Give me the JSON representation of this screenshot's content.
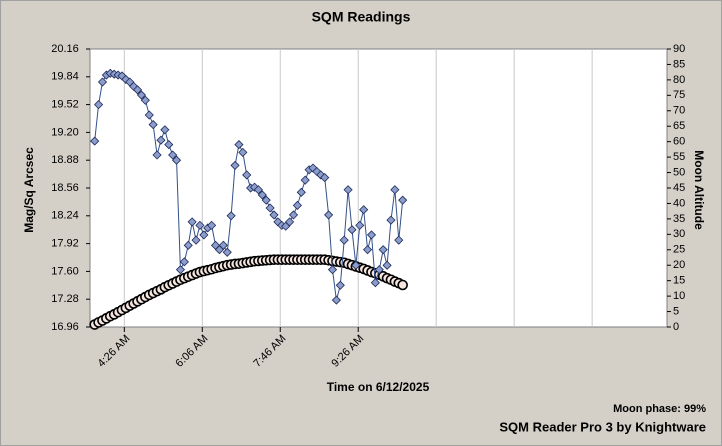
{
  "chart_data": {
    "type": "line",
    "title": "SQM Readings",
    "x_label": "Time on 6/12/2025",
    "y_label": "Mag/Sq Arcsec",
    "y2_label": "Moon Altitude",
    "annotations": [
      "Moon phase: 99%",
      "SQM Reader Pro 3 by Knightware"
    ],
    "x": [
      "3:48 AM",
      "3:53 AM",
      "3:58 AM",
      "4:03 AM",
      "4:08 AM",
      "4:13 AM",
      "4:18 AM",
      "4:23 AM",
      "4:28 AM",
      "4:33 AM",
      "4:38 AM",
      "4:43 AM",
      "4:48 AM",
      "4:53 AM",
      "4:58 AM",
      "5:03 AM",
      "5:08 AM",
      "5:13 AM",
      "5:18 AM",
      "5:23 AM",
      "5:28 AM",
      "5:33 AM",
      "5:38 AM",
      "5:43 AM",
      "5:48 AM",
      "5:53 AM",
      "5:58 AM",
      "6:03 AM",
      "6:08 AM",
      "6:13 AM",
      "6:18 AM",
      "6:23 AM",
      "6:28 AM",
      "6:33 AM",
      "6:38 AM",
      "6:43 AM",
      "6:48 AM",
      "6:53 AM",
      "6:58 AM",
      "7:03 AM",
      "7:08 AM",
      "7:13 AM",
      "7:18 AM",
      "7:23 AM",
      "7:28 AM",
      "7:33 AM",
      "7:38 AM",
      "7:43 AM",
      "7:48 AM",
      "7:53 AM",
      "7:58 AM",
      "8:03 AM",
      "8:08 AM",
      "8:13 AM",
      "8:18 AM",
      "8:23 AM",
      "8:28 AM",
      "8:33 AM",
      "8:38 AM",
      "8:43 AM",
      "8:48 AM",
      "8:53 AM",
      "8:58 AM",
      "9:03 AM",
      "9:08 AM",
      "9:13 AM",
      "9:18 AM",
      "9:23 AM",
      "9:28 AM",
      "9:33 AM",
      "9:38 AM",
      "9:43 AM",
      "9:48 AM",
      "9:53 AM",
      "9:58 AM",
      "10:03 AM",
      "10:08 AM",
      "10:13 AM",
      "10:18 AM",
      "10:23 AM"
    ],
    "series": [
      {
        "name": "SQM",
        "color": "#34508a",
        "marker_fill": "#8d9dcb",
        "values": [
          19.1,
          19.52,
          19.78,
          19.86,
          19.88,
          19.87,
          19.86,
          19.85,
          19.81,
          19.78,
          19.73,
          19.69,
          19.63,
          19.57,
          19.4,
          19.29,
          18.94,
          19.11,
          19.23,
          19.06,
          18.94,
          18.88,
          17.62,
          17.71,
          17.9,
          18.17,
          17.96,
          18.13,
          18.02,
          18.1,
          18.13,
          17.9,
          17.85,
          17.9,
          17.82,
          18.24,
          18.82,
          19.06,
          18.97,
          18.71,
          18.56,
          18.57,
          18.54,
          18.48,
          18.42,
          18.33,
          18.25,
          18.17,
          18.13,
          18.12,
          18.17,
          18.25,
          18.36,
          18.51,
          18.65,
          18.77,
          18.79,
          18.75,
          18.71,
          18.68,
          18.25,
          17.62,
          17.27,
          17.44,
          17.96,
          18.54,
          18.08,
          17.67,
          18.13,
          18.31,
          17.85,
          18.02,
          17.47,
          17.62,
          17.85,
          17.67,
          18.19,
          18.54,
          17.96,
          18.42
        ]
      },
      {
        "name": "Moon Altitude",
        "color": "#000000",
        "marker_fill": "#f6e6e0",
        "axis": "y2",
        "values": [
          0.8,
          1.5,
          2.1,
          2.8,
          3.5,
          4.1,
          4.8,
          5.5,
          6.2,
          6.9,
          7.6,
          8.3,
          9.0,
          9.7,
          10.4,
          11.0,
          11.6,
          12.2,
          12.9,
          13.5,
          14.1,
          14.7,
          15.3,
          15.8,
          16.3,
          16.8,
          17.3,
          17.8,
          18.1,
          18.4,
          18.7,
          19.1,
          19.4,
          19.7,
          20.0,
          20.2,
          20.4,
          20.5,
          20.7,
          20.9,
          21.1,
          21.3,
          21.4,
          21.5,
          21.6,
          21.7,
          21.8,
          21.8,
          21.8,
          21.8,
          21.8,
          21.8,
          21.8,
          21.8,
          21.8,
          21.8,
          21.8,
          21.8,
          21.8,
          21.8,
          21.6,
          21.4,
          21.2,
          21.0,
          20.8,
          20.4,
          20.0,
          19.6,
          19.2,
          18.8,
          18.3,
          17.8,
          17.4,
          16.9,
          16.4,
          15.8,
          15.3,
          14.7,
          14.2,
          13.6
        ]
      }
    ],
    "xlim": [
      "3:42 AM",
      "4:02 PM"
    ],
    "xticks": [
      "4:26 AM",
      "6:06 AM",
      "7:46 AM",
      "9:26 AM"
    ],
    "ylim": [
      16.96,
      20.16
    ],
    "yticks": [
      16.96,
      17.28,
      {
        "value": 17.6,
        "label": "17.60"
      },
      17.92,
      18.24,
      18.56,
      18.88,
      {
        "value": 19.2,
        "label": "19.20"
      },
      19.52,
      19.84,
      20.16
    ],
    "y2lim": [
      0,
      90
    ],
    "y2ticks": [
      0,
      5,
      10,
      15,
      20,
      25,
      30,
      35,
      40,
      45,
      50,
      55,
      60,
      65,
      70,
      75,
      80,
      85,
      90
    ],
    "grid": true
  }
}
